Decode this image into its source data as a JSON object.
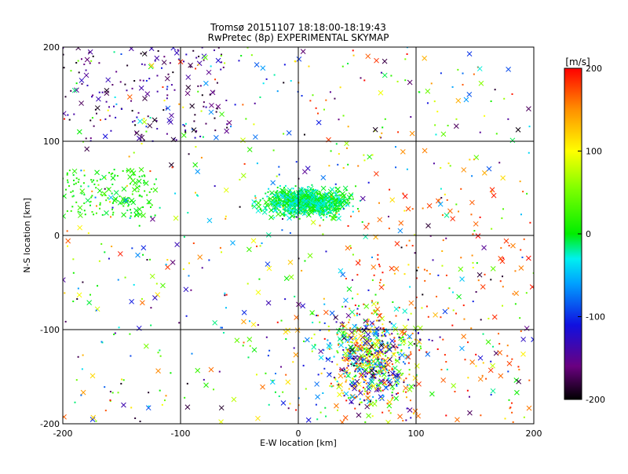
{
  "chart_data": {
    "type": "scatter",
    "title": "Tromsø 20151107 18:18:00-18:19:43",
    "subtitle": "RwPretec (8p) EXPERIMENTAL SKYMAP",
    "xlabel": "E-W location [km]",
    "ylabel": "N-S location [km]",
    "xlim": [
      -200,
      200
    ],
    "ylim": [
      -200,
      200
    ],
    "xticks": [
      -200,
      -100,
      0,
      100,
      200
    ],
    "yticks": [
      -200,
      -100,
      0,
      100,
      200
    ],
    "xtick_labels": [
      "-200",
      "-100",
      "0",
      "100",
      "200"
    ],
    "ytick_labels": [
      "-200",
      "-100",
      "0",
      "100",
      "200"
    ],
    "grid": true,
    "marker_types": [
      "cross",
      "dot"
    ],
    "colorbar": {
      "label": "[m/s]",
      "range": [
        -200,
        200
      ],
      "ticks": [
        200,
        100,
        0,
        -100,
        -200
      ],
      "tick_labels": [
        "200",
        "100",
        "0",
        "-100",
        "-200"
      ],
      "colormap_stops": [
        {
          "value": -200,
          "color": "#000000"
        },
        {
          "value": -160,
          "color": "#6a0080"
        },
        {
          "value": -110,
          "color": "#1010e0"
        },
        {
          "value": -60,
          "color": "#00a0ff"
        },
        {
          "value": -30,
          "color": "#00f0f0"
        },
        {
          "value": 0,
          "color": "#00ee00"
        },
        {
          "value": 55,
          "color": "#80ff00"
        },
        {
          "value": 100,
          "color": "#ffff00"
        },
        {
          "value": 150,
          "color": "#ff9000"
        },
        {
          "value": 200,
          "color": "#ff0000"
        }
      ]
    },
    "clusters": [
      {
        "region": "central north cluster",
        "x": [
          -40,
          55
        ],
        "y": [
          15,
          55
        ],
        "velocity": [
          -40,
          20
        ],
        "density": "very high"
      },
      {
        "region": "south-east cluster",
        "x": [
          10,
          110
        ],
        "y": [
          -200,
          -60
        ],
        "velocity": [
          -200,
          200
        ],
        "density": "high"
      },
      {
        "region": "north-west scatter",
        "x": [
          -200,
          -60
        ],
        "y": [
          100,
          200
        ],
        "velocity": [
          -200,
          -120
        ],
        "density": "medium"
      },
      {
        "region": "east red scatter",
        "x": [
          40,
          200
        ],
        "y": [
          -200,
          50
        ],
        "velocity": [
          150,
          200
        ],
        "density": "medium"
      },
      {
        "region": "west green scatter",
        "x": [
          -200,
          -120
        ],
        "y": [
          20,
          70
        ],
        "velocity": [
          -10,
          30
        ],
        "density": "medium"
      }
    ]
  }
}
